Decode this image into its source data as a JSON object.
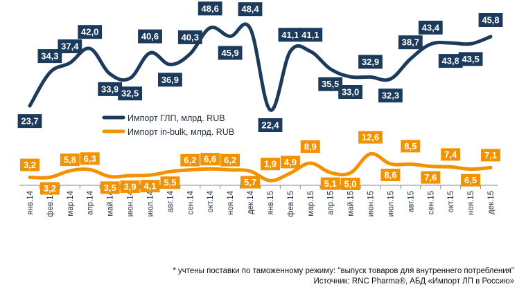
{
  "chart_data": {
    "type": "line",
    "categories": [
      "янв.14",
      "фев.14",
      "мар.14",
      "апр.14",
      "май.14",
      "июн.14",
      "июл.14",
      "авг.14",
      "сен.14",
      "окт.14",
      "ноя.14",
      "дек.14",
      "янв.15",
      "фев.15",
      "мар.15",
      "апр.15",
      "май.15",
      "июн.15",
      "июл.15",
      "авг.15",
      "сен.15",
      "окт.15",
      "ноя.15",
      "дек.15"
    ],
    "series": [
      {
        "name": "Импорт ГЛП, млрд. RUB",
        "color": "#1b3a5c",
        "values": [
          23.7,
          34.3,
          37.4,
          42.0,
          33.9,
          32.5,
          40.6,
          36.9,
          40.3,
          48.6,
          45.9,
          48.4,
          22.4,
          41.1,
          41.1,
          35.5,
          33.0,
          32.9,
          32.3,
          38.7,
          43.4,
          43.8,
          43.5,
          45.8
        ],
        "labels": [
          "23,7",
          "34,3",
          "37,4",
          "42,0",
          "33,9",
          "32,5",
          "40,6",
          "36,9",
          "40,3",
          "48,6",
          "45,9",
          "48,4",
          "22,4",
          "41,1",
          "41,1",
          "35,5",
          "33,0",
          "32,9",
          "32,3",
          "38,7",
          "43,4",
          "43,8",
          "43,5",
          "45,8"
        ]
      },
      {
        "name": "Импорт in-bulk, млрд. RUB",
        "color": "#f39200",
        "values": [
          3.2,
          3.2,
          5.8,
          6.3,
          3.5,
          3.9,
          4.1,
          5.5,
          6.2,
          6.6,
          6.2,
          5.7,
          1.9,
          4.9,
          8.9,
          5.1,
          5.0,
          12.6,
          8.6,
          8.5,
          7.6,
          7.4,
          6.5,
          7.1
        ],
        "labels": [
          "3,2",
          "3,2",
          "5,8",
          "6,3",
          "3,5",
          "3,9",
          "4,1",
          "5,5",
          "6,2",
          "6,6",
          "6,2",
          "5,7",
          "1,9",
          "4,9",
          "8,9",
          "5,1",
          "5,0",
          "12,6",
          "8,6",
          "8,5",
          "7,6",
          "7,4",
          "6,5",
          "7,1"
        ]
      }
    ],
    "legend_position": "center",
    "grid": false
  },
  "footnotes": {
    "note": "* учтены поставки по таможенному режиму: \"выпуск товаров для внутреннего потребления\"",
    "source": "Источник: RNC Pharma®, АБД «Импорт ЛП в Россию»"
  }
}
